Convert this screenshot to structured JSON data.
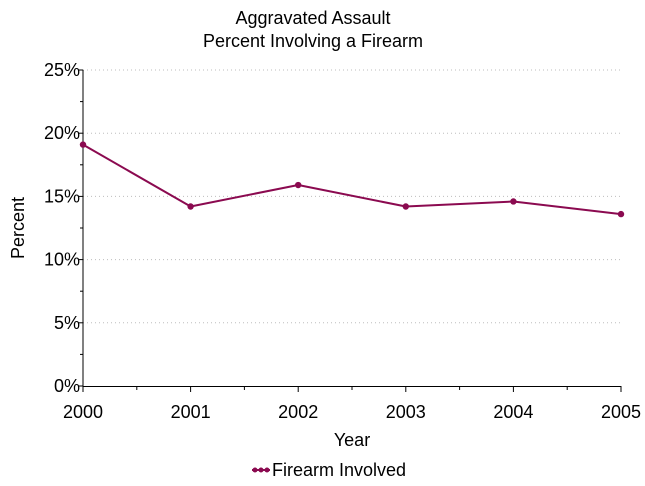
{
  "chart_data": {
    "type": "line",
    "title": "Aggravated Assault",
    "subtitle": "Percent Involving a Firearm",
    "xlabel": "Year",
    "ylabel": "Percent",
    "x": [
      "2000",
      "2001",
      "2002",
      "2003",
      "2004",
      "2005"
    ],
    "y_ticks": [
      "0%",
      "5%",
      "10%",
      "15%",
      "20%",
      "25%"
    ],
    "ylim": [
      0,
      25
    ],
    "grid": true,
    "legend_position": "bottom",
    "series": [
      {
        "name": "Firearm Involved",
        "color": "#8B0A50",
        "values": [
          19.1,
          14.2,
          15.9,
          14.2,
          14.6,
          13.6
        ]
      }
    ]
  }
}
